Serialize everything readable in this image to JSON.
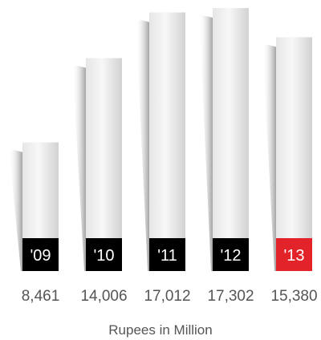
{
  "chart_data": {
    "type": "bar",
    "categories": [
      "'09",
      "'10",
      "'11",
      "'12",
      "'13"
    ],
    "values": [
      8461,
      14006,
      17012,
      17302,
      15380
    ],
    "value_labels": [
      "8,461",
      "14,006",
      "17,012",
      "17,302",
      "15,380"
    ],
    "caption": "Rupees in Million",
    "title": "",
    "xlabel": "",
    "ylabel": "",
    "ylim": [
      0,
      17302
    ],
    "grid": false,
    "legend": "none",
    "colors": {
      "label_box": "#000000",
      "highlight_label_box": "#e3232a",
      "label_text": "#ffffff",
      "value_text": "#555555",
      "bar_light": "#f4f4f4",
      "bar_dark": "#cfcfcf"
    },
    "highlight_index": 4
  }
}
